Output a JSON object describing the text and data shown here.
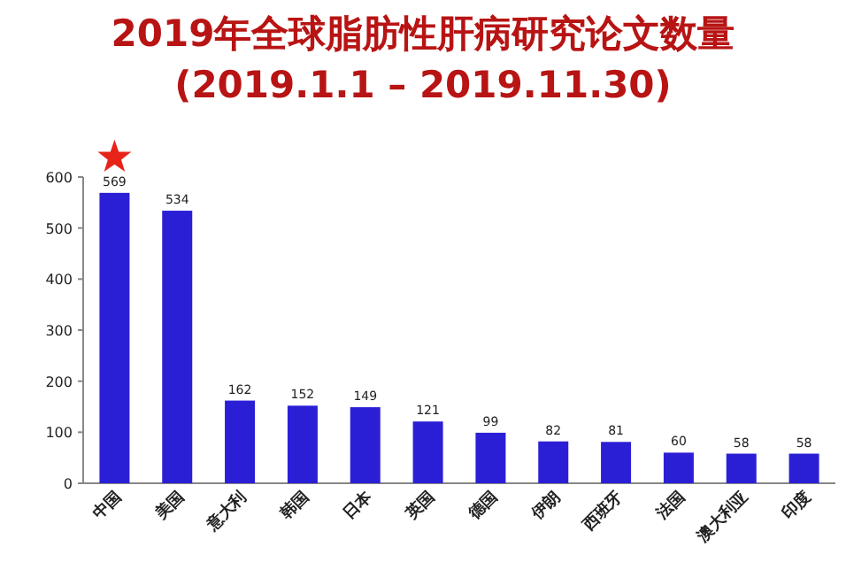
{
  "chart_data": {
    "type": "bar",
    "title": "2019年全球脂肪性肝病研究论文数量",
    "subtitle": "(2019.1.1 – 2019.11.30)",
    "categories": [
      "中国",
      "美国",
      "意大利",
      "韩国",
      "日本",
      "英国",
      "德国",
      "伊朗",
      "西班牙",
      "法国",
      "澳大利亚",
      "印度"
    ],
    "values": [
      569,
      534,
      162,
      152,
      149,
      121,
      99,
      82,
      81,
      60,
      58,
      58
    ],
    "color": "#2b1fd6",
    "ylim": [
      0,
      600
    ],
    "yticks": [
      0,
      100,
      200,
      300,
      400,
      500,
      600
    ],
    "data_labels": true,
    "grid": false
  }
}
